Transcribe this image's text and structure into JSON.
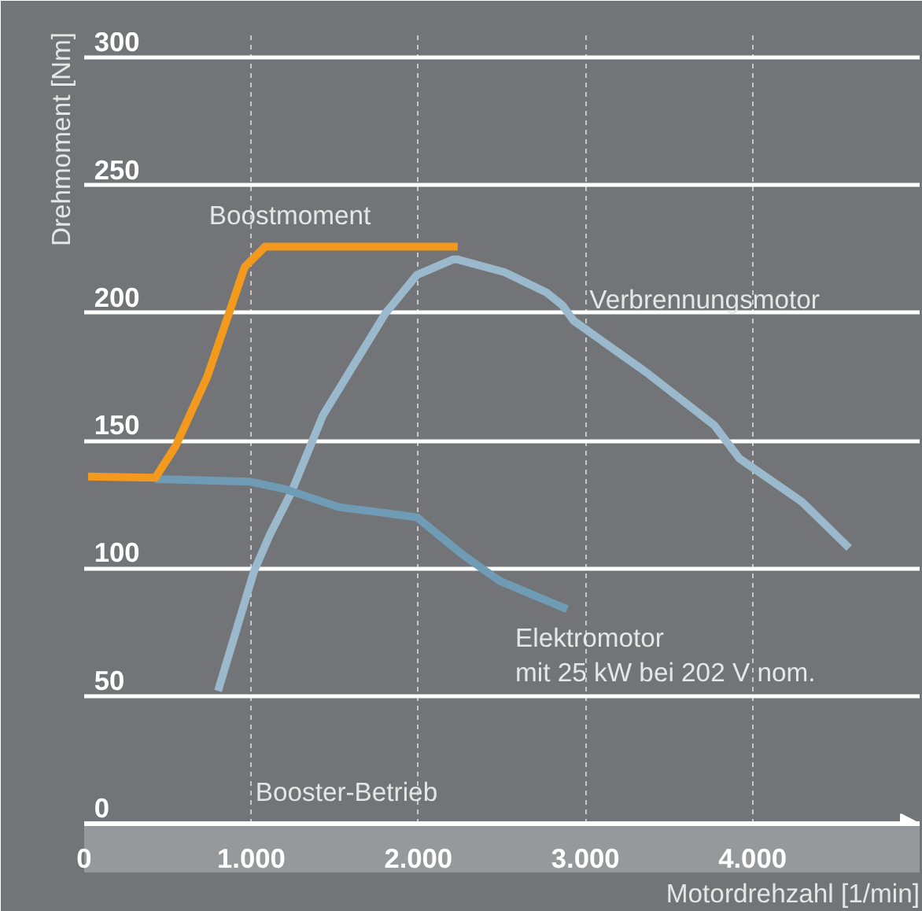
{
  "chart_data": {
    "type": "line",
    "xlabel": "Motordrehzahl [1/min]",
    "ylabel": "Drehmoment [Nm]",
    "xlim": [
      0,
      5000
    ],
    "ylim": [
      0,
      310
    ],
    "xticks": [
      0,
      {
        "value": 1000,
        "label": "1.000"
      },
      {
        "value": 2000,
        "label": "2.000"
      },
      {
        "value": 3000,
        "label": "3.000"
      },
      {
        "value": 4000,
        "label": "4.000"
      }
    ],
    "yticks": [
      0,
      50,
      100,
      150,
      200,
      250,
      300
    ],
    "grid": true,
    "line_style": "solid",
    "series": [
      {
        "name": "Verbrennungsmotor",
        "color": "#9ab9cc",
        "x": [
          801,
          1017,
          1110,
          1241,
          1429,
          1804,
          1992,
          2207,
          2235,
          2516,
          2769,
          2863,
          2929,
          3360,
          3772,
          3922,
          4297,
          4578
        ],
        "values": [
          52,
          99,
          113,
          130,
          160,
          200,
          215,
          221,
          221,
          216,
          208,
          203,
          197,
          177,
          156,
          143,
          126,
          108
        ]
      },
      {
        "name": "Elektromotor\nmit 25 kW bei 202 V nom.",
        "color": "#6f9bb5",
        "x": [
          426,
          989,
          1204,
          1523,
          1767,
          1992,
          2273,
          2489,
          2891
        ],
        "values": [
          135,
          134,
          131,
          124,
          122,
          120,
          105,
          95,
          84
        ]
      },
      {
        "name": "Boostmoment",
        "color": "#f39a1e",
        "x": [
          23,
          426,
          548,
          736,
          867,
          960,
          1082,
          2235
        ],
        "values": [
          136,
          135.5,
          148,
          175,
          200,
          218,
          226,
          226
        ]
      }
    ],
    "annotations": [
      "Booster-Betrieb"
    ]
  }
}
